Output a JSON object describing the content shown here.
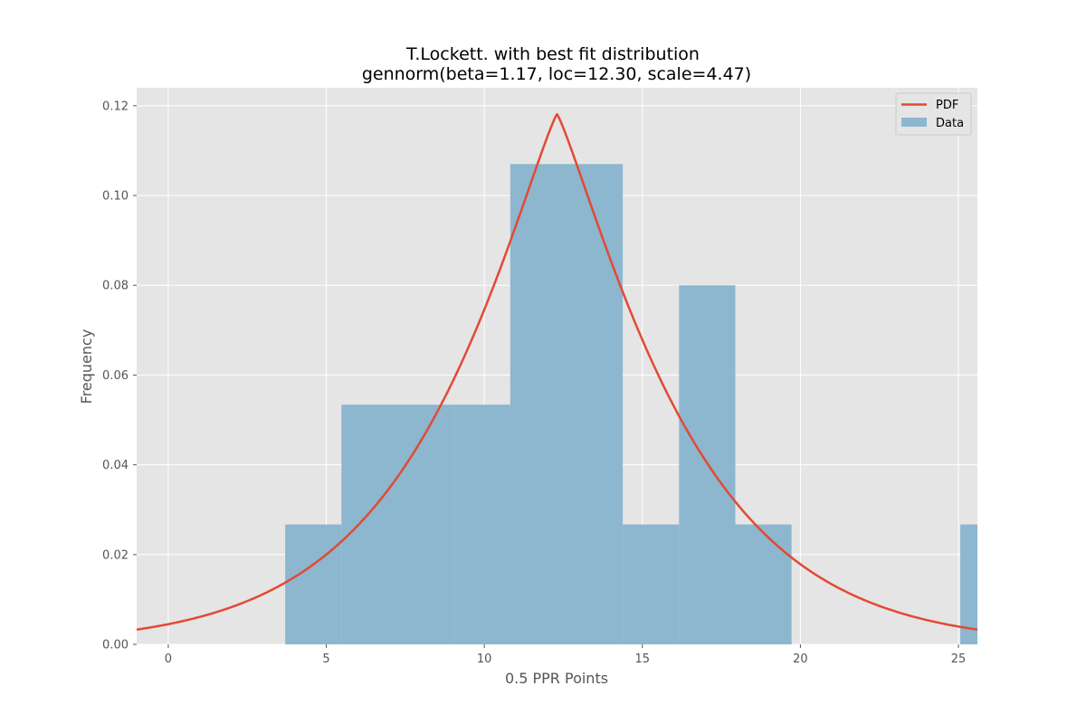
{
  "chart_data": {
    "type": "bar",
    "title": "T.Lockett. with best fit distribution",
    "subtitle": "gennorm(beta=1.17, loc=12.30, scale=4.47)",
    "xlabel": "0.5 PPR Points",
    "ylabel": "Frequency",
    "xlim": [
      -1,
      25.6
    ],
    "ylim": [
      0,
      0.124
    ],
    "xticks": [
      0,
      5,
      10,
      15,
      20,
      25
    ],
    "yticks": [
      0.0,
      0.02,
      0.04,
      0.06,
      0.08,
      0.1,
      0.12
    ],
    "xtick_labels": [
      "0",
      "5",
      "10",
      "15",
      "20",
      "25"
    ],
    "ytick_labels": [
      "0.00",
      "0.02",
      "0.04",
      "0.06",
      "0.08",
      "0.10",
      "0.12"
    ],
    "grid": true,
    "legend_position": "top-right",
    "histogram": {
      "name": "Data",
      "color": "#8DB6CF",
      "bin_edges": [
        3.7,
        5.48,
        7.26,
        9.04,
        10.82,
        12.6,
        14.38,
        16.16,
        17.94,
        19.72,
        21.5,
        23.28,
        25.06,
        26.84
      ],
      "values": [
        0.0267,
        0.0534,
        0.0534,
        0.0534,
        0.107,
        0.107,
        0.0267,
        0.08,
        0.0267,
        0.0,
        0.0,
        0.0,
        0.0267
      ]
    },
    "pdf": {
      "name": "PDF",
      "color": "#E24A33",
      "distribution": "gennorm",
      "beta": 1.17,
      "loc": 12.3,
      "scale": 4.47
    }
  },
  "colors": {
    "plot_background": "#E5E5E5",
    "grid": "#FFFFFF",
    "pdf_line": "#E24A33",
    "bars": "#8DB6CF"
  }
}
